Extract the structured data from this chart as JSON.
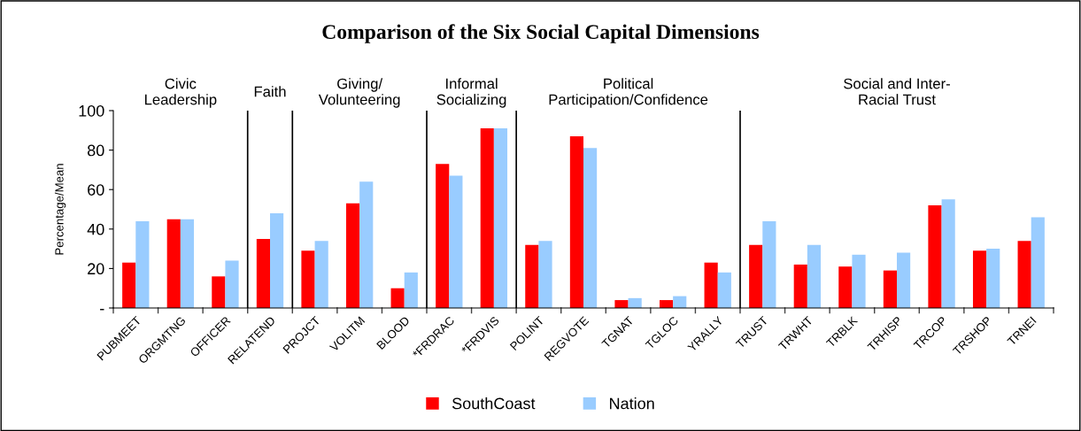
{
  "chart_data": {
    "type": "bar",
    "title": "Comparison of the Six Social Capital Dimensions",
    "ylabel": "Percentage/Mean",
    "categories": [
      "PUBMEET",
      "ORGMTNG",
      "OFFICER",
      "RELATEND",
      "PROJCT",
      "VOLITM",
      "BLOOD",
      "*FRDRAC",
      "*FRDVIS",
      "POLINT",
      "REGVOTE",
      "TGNAT",
      "TGLOC",
      "YRALLY",
      "TRUST",
      "TRWHT",
      "TRBLK",
      "TRHISP",
      "TRCOP",
      "TRSHOP",
      "TRNEI"
    ],
    "series": [
      {
        "name": "SouthCoast",
        "color": "#ff0000",
        "values": [
          23,
          45,
          16,
          35,
          29,
          53,
          10,
          73,
          91,
          32,
          87,
          4,
          4,
          23,
          32,
          22,
          21,
          19,
          52,
          29,
          34
        ]
      },
      {
        "name": "Nation",
        "color": "#99ccff",
        "values": [
          44,
          45,
          24,
          48,
          34,
          64,
          18,
          67,
          91,
          34,
          81,
          5,
          6,
          18,
          44,
          32,
          27,
          28,
          55,
          30,
          46
        ]
      }
    ],
    "ylim": [
      0,
      100
    ],
    "yticks": [
      {
        "value": 0,
        "label": "-"
      },
      20,
      40,
      60,
      80,
      100
    ],
    "annotations": [
      "Civic\nLeadership",
      "Faith",
      "Giving/\nVolunteering",
      "Informal\nSocializing",
      "Political\nParticipation/Confidence",
      "Social and Inter-\nRacial Trust"
    ],
    "grid": false,
    "legend": "bottom"
  }
}
